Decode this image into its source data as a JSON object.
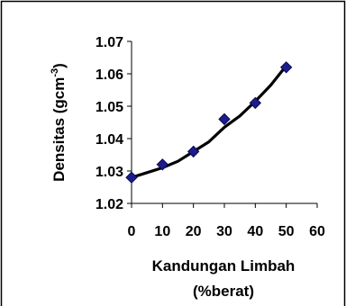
{
  "chart_data": {
    "type": "scatter",
    "title": "",
    "xlabel_line1": "Kandungan Limbah",
    "xlabel_line2": "(%berat)",
    "ylabel_main": "Densitas (gcm",
    "ylabel_sup": "-3",
    "ylabel_close": ")",
    "xlim": [
      0,
      60
    ],
    "ylim": [
      1.02,
      1.07
    ],
    "xticks": [
      "0",
      "10",
      "20",
      "30",
      "40",
      "50",
      "60"
    ],
    "yticks": [
      "1.02",
      "1.03",
      "1.04",
      "1.05",
      "1.06",
      "1.07"
    ],
    "grid": false,
    "legend": "none",
    "marker": "diamond",
    "marker_color": "#1c1c8c",
    "trendline_color": "#000000",
    "series": [
      {
        "x": [
          0,
          10,
          20,
          30,
          40,
          50
        ],
        "y": [
          1.028,
          1.032,
          1.036,
          1.046,
          1.051,
          1.062
        ]
      }
    ],
    "trendline": {
      "x": [
        0,
        5,
        10,
        15,
        20,
        25,
        30,
        35,
        40,
        45,
        50
      ],
      "y": [
        1.028,
        1.0295,
        1.031,
        1.033,
        1.036,
        1.039,
        1.0435,
        1.047,
        1.0515,
        1.0565,
        1.0625
      ]
    }
  }
}
